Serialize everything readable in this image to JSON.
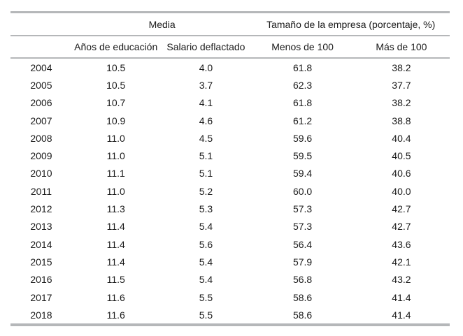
{
  "colors": {
    "rule": "#b5b7b9",
    "text": "#1a1a1a",
    "background": "#ffffff"
  },
  "chart_data": {
    "type": "table",
    "group_headers": [
      {
        "label": "Media",
        "span": 2
      },
      {
        "label": "Tamaño de la empresa (porcentaje, %)",
        "span": 2
      }
    ],
    "column_headers": [
      "Años de educación",
      "Salario deflactado",
      "Menos de 100",
      "Más de 100"
    ],
    "rows": [
      {
        "year": "2004",
        "values": [
          "10.5",
          "4.0",
          "61.8",
          "38.2"
        ]
      },
      {
        "year": "2005",
        "values": [
          "10.5",
          "3.7",
          "62.3",
          "37.7"
        ]
      },
      {
        "year": "2006",
        "values": [
          "10.7",
          "4.1",
          "61.8",
          "38.2"
        ]
      },
      {
        "year": "2007",
        "values": [
          "10.9",
          "4.6",
          "61.2",
          "38.8"
        ]
      },
      {
        "year": "2008",
        "values": [
          "11.0",
          "4.5",
          "59.6",
          "40.4"
        ]
      },
      {
        "year": "2009",
        "values": [
          "11.0",
          "5.1",
          "59.5",
          "40.5"
        ]
      },
      {
        "year": "2010",
        "values": [
          "11.1",
          "5.1",
          "59.4",
          "40.6"
        ]
      },
      {
        "year": "2011",
        "values": [
          "11.0",
          "5.2",
          "60.0",
          "40.0"
        ]
      },
      {
        "year": "2012",
        "values": [
          "11.3",
          "5.3",
          "57.3",
          "42.7"
        ]
      },
      {
        "year": "2013",
        "values": [
          "11.4",
          "5.4",
          "57.3",
          "42.7"
        ]
      },
      {
        "year": "2014",
        "values": [
          "11.4",
          "5.6",
          "56.4",
          "43.6"
        ]
      },
      {
        "year": "2015",
        "values": [
          "11.4",
          "5.4",
          "57.9",
          "42.1"
        ]
      },
      {
        "year": "2016",
        "values": [
          "11.5",
          "5.4",
          "56.8",
          "43.2"
        ]
      },
      {
        "year": "2017",
        "values": [
          "11.6",
          "5.5",
          "58.6",
          "41.4"
        ]
      },
      {
        "year": "2018",
        "values": [
          "11.6",
          "5.5",
          "58.6",
          "41.4"
        ]
      }
    ]
  }
}
